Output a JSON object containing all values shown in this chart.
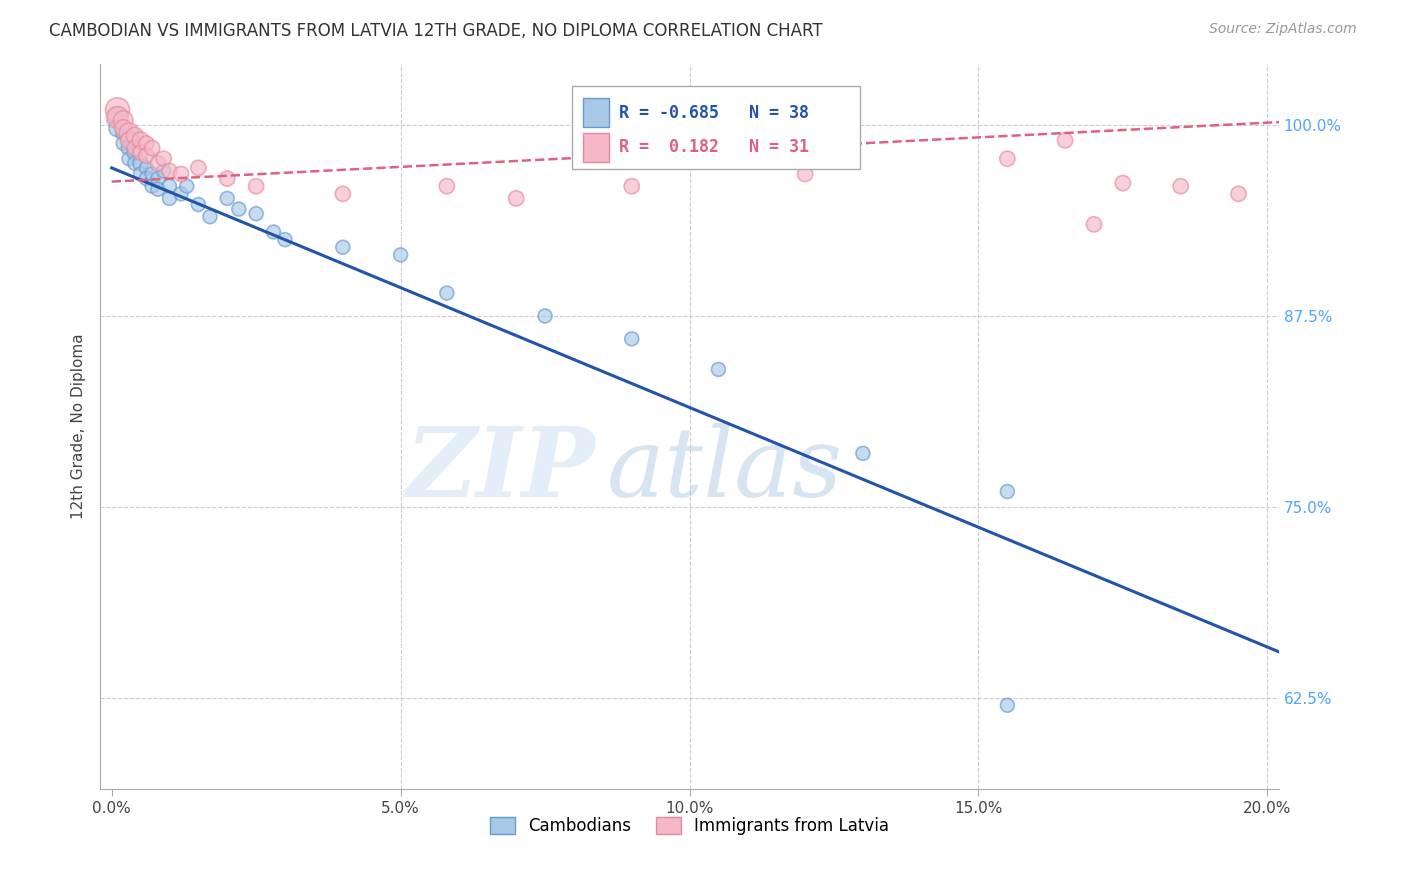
{
  "title": "CAMBODIAN VS IMMIGRANTS FROM LATVIA 12TH GRADE, NO DIPLOMA CORRELATION CHART",
  "source": "Source: ZipAtlas.com",
  "xlabel_ticks": [
    "0.0%",
    "5.0%",
    "10.0%",
    "15.0%",
    "20.0%"
  ],
  "xlabel_tick_vals": [
    0.0,
    0.05,
    0.1,
    0.15,
    0.2
  ],
  "ylabel": "12th Grade, No Diploma",
  "ylabel_ticks": [
    "62.5%",
    "75.0%",
    "87.5%",
    "100.0%"
  ],
  "ylabel_tick_vals": [
    0.625,
    0.75,
    0.875,
    1.0
  ],
  "xlim": [
    -0.002,
    0.202
  ],
  "ylim": [
    0.565,
    1.04
  ],
  "cambodian_color": "#a8c8e8",
  "cambodian_edge": "#6699cc",
  "latvia_color": "#f5b8c8",
  "latvia_edge": "#e88899",
  "trendline_cambodian_color": "#2255aa",
  "trendline_latvia_color": "#e06080",
  "legend_line1": "R = -0.685   N = 38",
  "legend_line2": "R =  0.182   N = 31",
  "watermark_zip": "ZIP",
  "watermark_atlas": "atlas",
  "background_color": "#ffffff",
  "grid_color": "#cccccc",
  "cam_trend_x0": 0.0,
  "cam_trend_y0": 0.972,
  "cam_trend_x1": 0.202,
  "cam_trend_y1": 0.655,
  "lat_trend_x0": 0.0,
  "lat_trend_y0": 0.963,
  "lat_trend_x1": 0.202,
  "lat_trend_y1": 1.002,
  "cambodian_x": [
    0.001,
    0.001,
    0.002,
    0.002,
    0.003,
    0.003,
    0.003,
    0.004,
    0.004,
    0.005,
    0.005,
    0.006,
    0.006,
    0.007,
    0.007,
    0.008,
    0.008,
    0.009,
    0.01,
    0.01,
    0.012,
    0.013,
    0.015,
    0.017,
    0.02,
    0.022,
    0.025,
    0.028,
    0.03,
    0.04,
    0.05,
    0.058,
    0.075,
    0.09,
    0.105,
    0.13,
    0.155,
    0.155
  ],
  "cambodian_y": [
    1.005,
    0.998,
    0.995,
    0.988,
    0.992,
    0.985,
    0.978,
    0.982,
    0.975,
    0.975,
    0.968,
    0.972,
    0.965,
    0.968,
    0.96,
    0.965,
    0.958,
    0.97,
    0.96,
    0.952,
    0.955,
    0.96,
    0.948,
    0.94,
    0.952,
    0.945,
    0.942,
    0.93,
    0.925,
    0.92,
    0.915,
    0.89,
    0.875,
    0.86,
    0.84,
    0.785,
    0.76,
    0.62
  ],
  "cambodian_sizes": [
    200,
    150,
    120,
    100,
    150,
    120,
    100,
    120,
    100,
    120,
    100,
    100,
    100,
    100,
    100,
    100,
    100,
    100,
    100,
    100,
    100,
    100,
    100,
    100,
    100,
    100,
    100,
    100,
    100,
    100,
    100,
    100,
    100,
    100,
    100,
    100,
    100,
    100
  ],
  "latvia_x": [
    0.001,
    0.001,
    0.002,
    0.002,
    0.003,
    0.003,
    0.004,
    0.004,
    0.005,
    0.005,
    0.006,
    0.006,
    0.007,
    0.008,
    0.009,
    0.01,
    0.012,
    0.015,
    0.02,
    0.025,
    0.04,
    0.058,
    0.07,
    0.09,
    0.12,
    0.155,
    0.165,
    0.17,
    0.175,
    0.185,
    0.195
  ],
  "latvia_y": [
    1.01,
    1.005,
    1.003,
    0.998,
    0.995,
    0.99,
    0.993,
    0.985,
    0.99,
    0.982,
    0.988,
    0.98,
    0.985,
    0.975,
    0.978,
    0.97,
    0.968,
    0.972,
    0.965,
    0.96,
    0.955,
    0.96,
    0.952,
    0.96,
    0.968,
    0.978,
    0.99,
    0.935,
    0.962,
    0.96,
    0.955
  ],
  "latvia_sizes": [
    300,
    250,
    200,
    150,
    200,
    150,
    150,
    120,
    150,
    120,
    120,
    120,
    120,
    120,
    120,
    120,
    120,
    120,
    120,
    120,
    120,
    120,
    120,
    120,
    120,
    120,
    120,
    120,
    120,
    120,
    120
  ]
}
